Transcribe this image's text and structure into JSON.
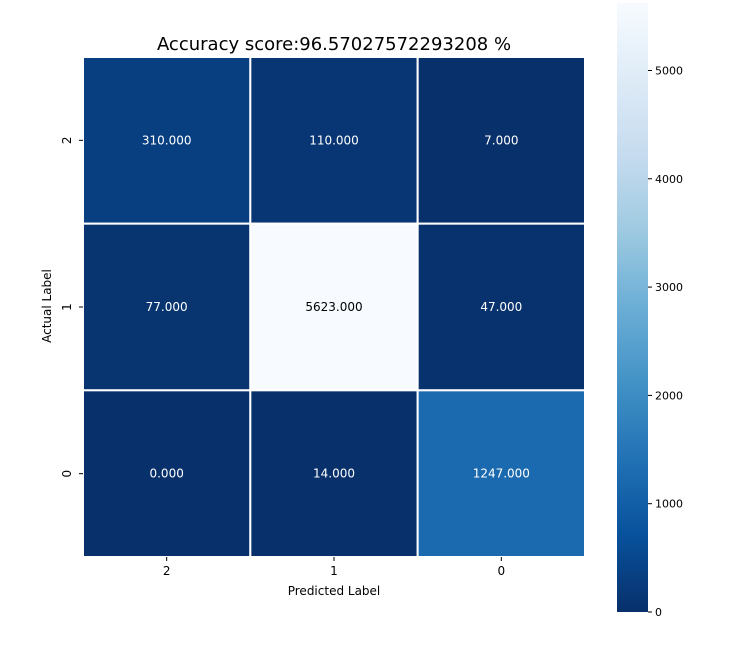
{
  "chart_data": {
    "type": "heatmap",
    "title": "Accuracy score:96.57027572293208 %",
    "xlabel": "Predicted Label",
    "ylabel": "Actual Label",
    "x_categories": [
      "2",
      "1",
      "0"
    ],
    "y_categories": [
      "2",
      "1",
      "0"
    ],
    "values": [
      [
        310,
        110,
        7
      ],
      [
        77,
        5623,
        47
      ],
      [
        0,
        14,
        1247
      ]
    ],
    "cell_labels": [
      [
        "310.000",
        "110.000",
        "7.000"
      ],
      [
        "77.000",
        "5623.000",
        "47.000"
      ],
      [
        "0.000",
        "14.000",
        "1247.000"
      ]
    ],
    "colormap": "Blues_r",
    "color_range": [
      0,
      5623
    ],
    "colorbar_ticks": [
      0,
      1000,
      2000,
      3000,
      4000,
      5000
    ],
    "cell_text_color": "#ffffff",
    "grid_line_color": "#ffffff"
  }
}
